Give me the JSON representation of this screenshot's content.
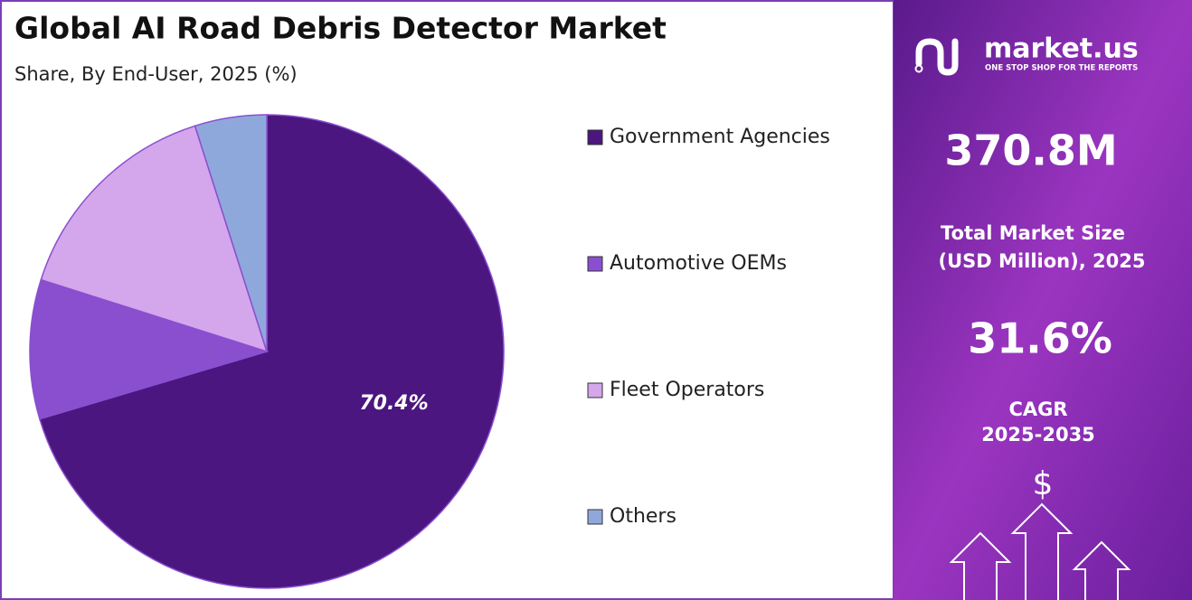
{
  "chart_data": {
    "type": "pie",
    "title": "Global AI Road Debris Detector Market",
    "subtitle": "Share, By End-User, 2025 (%)",
    "categories": [
      "Government Agencies",
      "Automotive OEMs",
      "Fleet Operators",
      "Others"
    ],
    "values": [
      70.4,
      9.5,
      15.2,
      4.9
    ],
    "value_labels": [
      "70.4%",
      null,
      null,
      null
    ],
    "colors": [
      "#4b1680",
      "#8a4fcf",
      "#d4a6ec",
      "#8fa8dc"
    ]
  },
  "panel": {
    "brand": "market.us",
    "tagline": "ONE STOP SHOP FOR THE REPORTS",
    "market_size": "370.8M",
    "market_size_label": [
      "Total Market Size",
      "(USD Million), 2025"
    ],
    "cagr": "31.6%",
    "cagr_label": [
      "CAGR",
      "2025-2035"
    ],
    "icon_symbol": "$"
  }
}
